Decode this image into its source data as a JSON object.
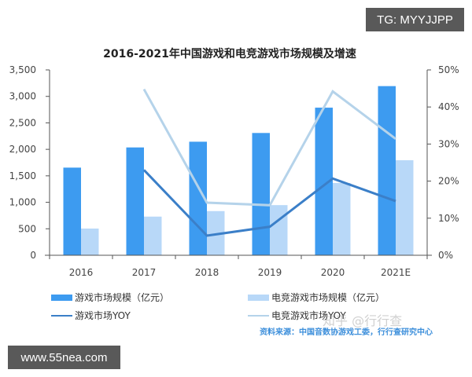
{
  "badges": {
    "top_right": "TG: MYYJJPP",
    "bottom_left": "www.55nea.com"
  },
  "watermark": "知乎 @行行查",
  "source": "资料来源：中国音数协游戏工委，行行查研究中心",
  "legend": [
    {
      "label": "游戏市场规模（亿元）",
      "type": "bar",
      "color": "#3d9bf0"
    },
    {
      "label": "电竞游戏市场规模（亿元）",
      "type": "bar",
      "color": "#b8d8f8"
    },
    {
      "label": "游戏市场YOY",
      "type": "line",
      "color": "#3b7fc8"
    },
    {
      "label": "电竞游戏市场YOY",
      "type": "line",
      "color": "#b5d3ea"
    }
  ],
  "chart_data": {
    "type": "bar",
    "title": "2016-2021年中国游戏和电竞游戏市场规模及增速",
    "categories": [
      "2016",
      "2017",
      "2018",
      "2019",
      "2020",
      "2021E"
    ],
    "xlabel": "",
    "ylabel": "",
    "ylim": [
      0,
      3500
    ],
    "y_ticks": [
      "0",
      "500",
      "1,000",
      "1,500",
      "2,000",
      "2,500",
      "3,000",
      "3,500"
    ],
    "y2lim": [
      0,
      50
    ],
    "y2_ticks": [
      "0%",
      "10%",
      "20%",
      "30%",
      "40%",
      "50%"
    ],
    "grid": false,
    "legend_position": "bottom",
    "series": [
      {
        "name": "游戏市场规模（亿元）",
        "type": "bar",
        "axis": "left",
        "color": "#3d9bf0",
        "values": [
          1655,
          2036,
          2144,
          2309,
          2787,
          3194
        ]
      },
      {
        "name": "电竞游戏市场规模（亿元）",
        "type": "bar",
        "axis": "left",
        "color": "#b8d8f8",
        "values": [
          504,
          730,
          834,
          947,
          1365,
          1794
        ]
      },
      {
        "name": "游戏市场YOY",
        "type": "line",
        "axis": "right",
        "unit": "%",
        "color": "#3b7fc8",
        "values": [
          null,
          23.0,
          5.3,
          7.7,
          20.7,
          14.6
        ]
      },
      {
        "name": "电竞游戏市场YOY",
        "type": "line",
        "axis": "right",
        "unit": "%",
        "color": "#b5d3ea",
        "values": [
          null,
          44.8,
          14.2,
          13.5,
          44.2,
          31.4
        ]
      }
    ]
  }
}
